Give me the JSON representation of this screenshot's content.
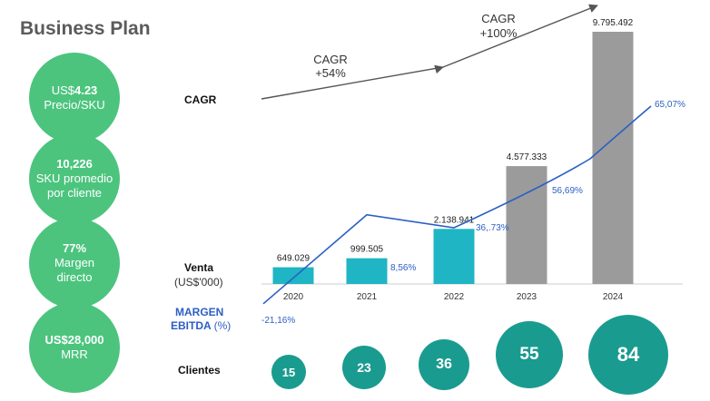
{
  "title": "Business Plan",
  "kpis": [
    {
      "prefix": "US$",
      "value": "4.23",
      "label": "Precio/SKU"
    },
    {
      "prefix": "",
      "value": "10,226",
      "label": "SKU promedio por cliente"
    },
    {
      "prefix": "",
      "value": "77%",
      "label": "Margen directo"
    },
    {
      "prefix": "",
      "value": "US$28,000",
      "label": "MRR"
    }
  ],
  "labels": {
    "cagr": "CAGR",
    "venta": "Venta",
    "venta_unit": "(US$'000)",
    "margen": "MARGEN",
    "ebitda": "EBITDA",
    "ebitda_unit": "(%)",
    "clientes": "Clientes"
  },
  "cagr_annotations": [
    {
      "line1": "CAGR",
      "line2": "+54%"
    },
    {
      "line1": "CAGR",
      "line2": "+100%"
    }
  ],
  "colors": {
    "kpi": "#4cc47e",
    "bar_actual": "#1fb5c4",
    "bar_projected": "#9b9b9b",
    "margin_line": "#2b5fc4",
    "clients": "#1a9b8f",
    "arrow": "#555555"
  },
  "chart_data": {
    "type": "bar",
    "categories": [
      "2020",
      "2021",
      "2022",
      "2023",
      "2024"
    ],
    "series": [
      {
        "values": [
          649029,
          999505,
          2138941,
          4577333,
          9795492
        ],
        "labels": [
          "649.029",
          "999.505",
          "2.138.941",
          "4.577.333",
          "9.795.492"
        ]
      },
      {
        "type": "line",
        "values": [
          -21.16,
          8.56,
          36.73,
          56.69,
          65.07
        ],
        "labels": [
          "-21,16%",
          "8,56%",
          "36,.73%",
          "56,69%",
          "65,07%"
        ]
      }
    ],
    "clients": [
      15,
      23,
      36,
      55,
      84
    ]
  }
}
